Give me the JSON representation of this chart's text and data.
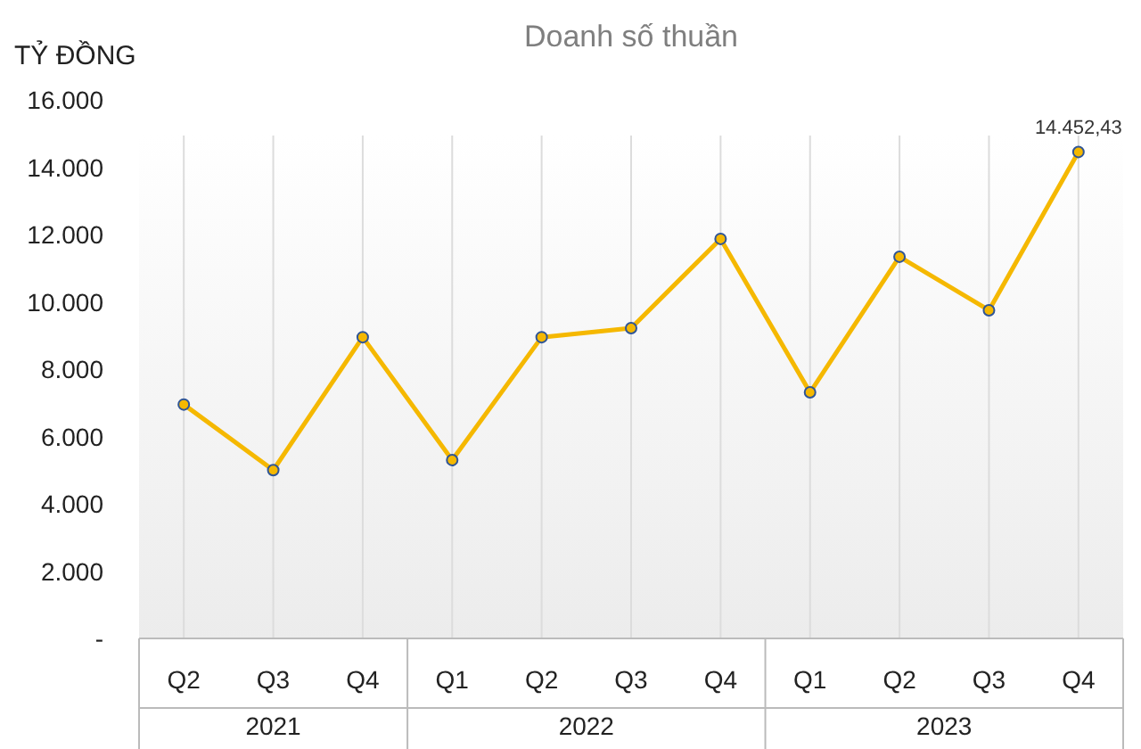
{
  "chart_data": {
    "type": "line",
    "title": "Doanh số thuần",
    "ylabel": "TỶ ĐỒNG",
    "categories": [
      "Q2",
      "Q3",
      "Q4",
      "Q1",
      "Q2",
      "Q3",
      "Q4",
      "Q1",
      "Q2",
      "Q3",
      "Q4"
    ],
    "series": [
      {
        "color": "#f5b800",
        "values": [
          6950,
          5000,
          8950,
          5300,
          8950,
          9220,
          11870,
          7310,
          11340,
          9750,
          14452.43
        ],
        "value_labels": [
          null,
          null,
          null,
          null,
          null,
          null,
          null,
          null,
          null,
          null,
          "14.452,43"
        ]
      }
    ],
    "ylim": [
      0,
      16000
    ],
    "yticks": [
      {
        "value": 0,
        "label": "-"
      },
      {
        "value": 2000,
        "label": "2.000"
      },
      {
        "value": 4000,
        "label": "4.000"
      },
      {
        "value": 6000,
        "label": "6.000"
      },
      {
        "value": 8000,
        "label": "8.000"
      },
      {
        "value": 10000,
        "label": "10.000"
      },
      {
        "value": 12000,
        "label": "12.000"
      },
      {
        "value": 14000,
        "label": "14.000"
      },
      {
        "value": 16000,
        "label": "16.000"
      }
    ],
    "annotations": [
      "2021",
      "2022",
      "2023"
    ],
    "marker": "circle",
    "line_style": "solid",
    "grid": "x"
  }
}
